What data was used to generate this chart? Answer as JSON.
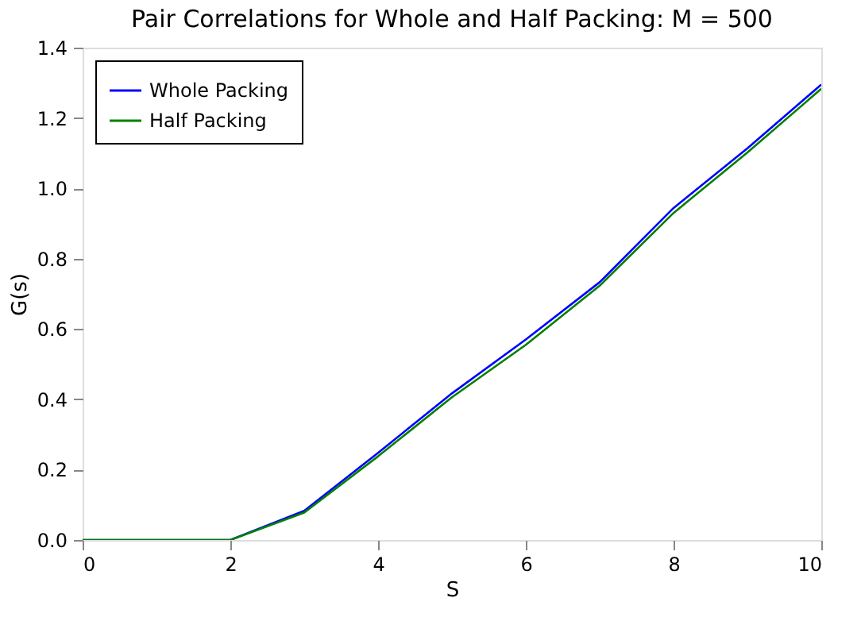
{
  "chart_data": {
    "type": "line",
    "title": "Pair Correlations for Whole and Half Packing: M = 500",
    "xlabel": "S",
    "ylabel": "G(s)",
    "x": [
      0,
      1,
      2,
      3,
      4,
      5,
      6,
      7,
      8,
      9,
      10
    ],
    "series": [
      {
        "name": "Whole Packing",
        "color": "#0000ff",
        "values": [
          0,
          0,
          0,
          0.083,
          0.248,
          0.417,
          0.57,
          0.733,
          0.944,
          1.114,
          1.295
        ]
      },
      {
        "name": "Half Packing",
        "color": "#008000",
        "values": [
          0,
          0,
          0,
          0.078,
          0.238,
          0.406,
          0.555,
          0.723,
          0.93,
          1.102,
          1.283
        ]
      }
    ],
    "xlim": [
      0,
      10
    ],
    "ylim": [
      0,
      1.4
    ],
    "xticks": [
      0,
      2,
      4,
      6,
      8,
      10
    ],
    "yticks": [
      {
        "value": 0,
        "label": "0.0"
      },
      0.2,
      0.4,
      0.6,
      0.8,
      {
        "value": 1,
        "label": "1.0"
      },
      1.2,
      1.4
    ],
    "grid": false,
    "legend": "top left",
    "marker": "none",
    "line_style": "solid"
  }
}
